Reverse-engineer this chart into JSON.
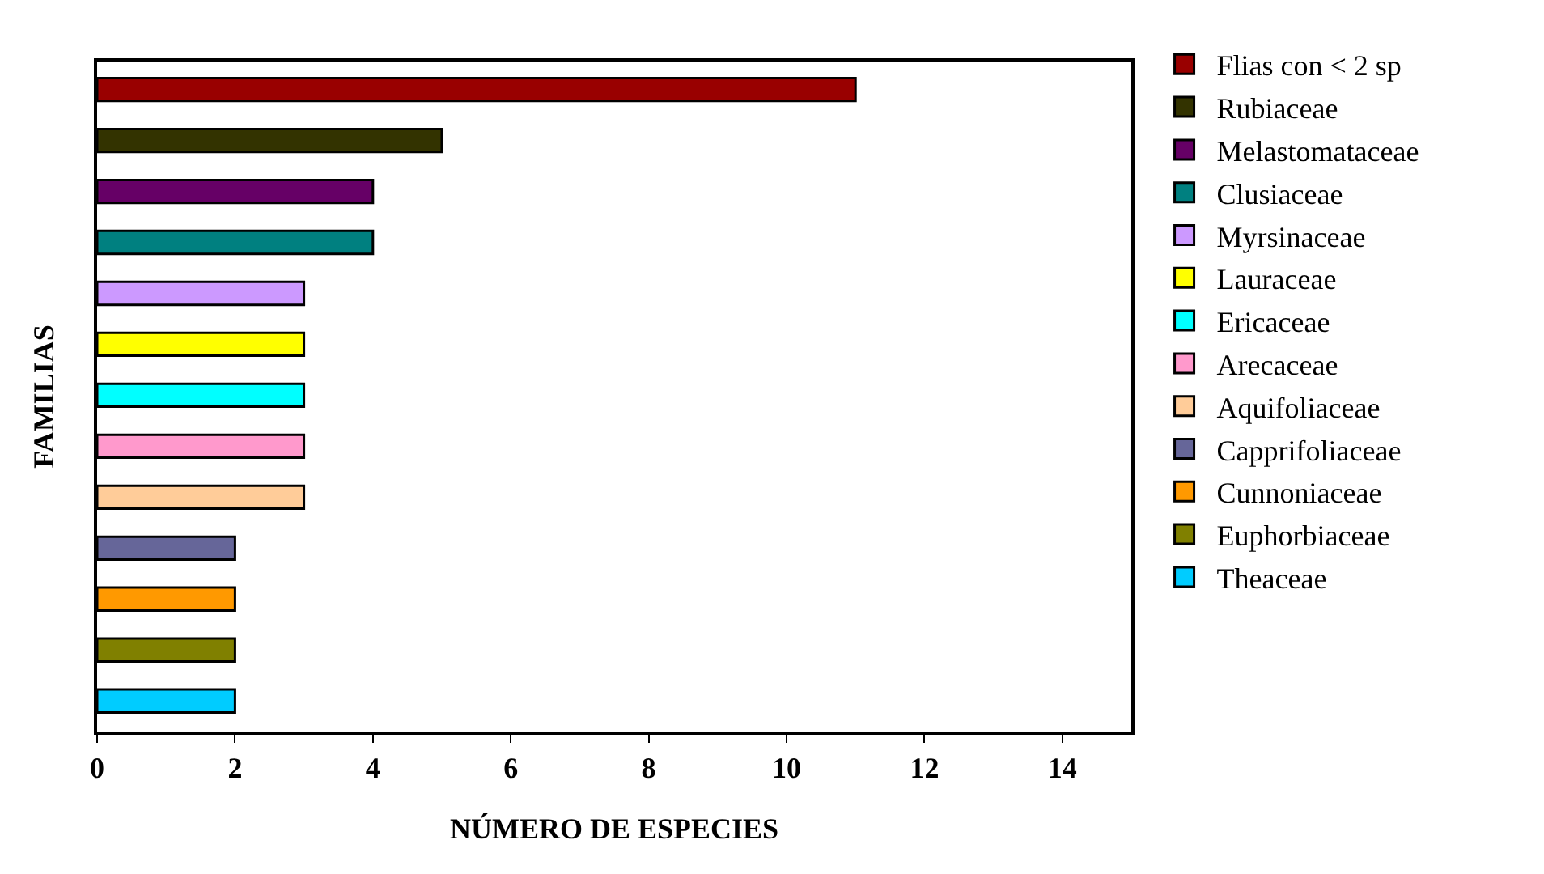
{
  "chart_data": {
    "type": "bar",
    "orientation": "horizontal",
    "xlabel": "NÚMERO DE ESPECIES",
    "ylabel": "FAMILIAS",
    "categories": [
      null,
      null,
      null,
      null,
      null,
      null,
      null,
      null,
      null,
      null,
      null,
      null,
      null
    ],
    "series": [
      {
        "name": "Flias con < 2 sp",
        "color": "#990000",
        "values": [
          11,
          null,
          null,
          null,
          null,
          null,
          null,
          null,
          null,
          null,
          null,
          null,
          null
        ]
      },
      {
        "name": "Rubiaceae",
        "color": "#333300",
        "values": [
          null,
          5,
          null,
          null,
          null,
          null,
          null,
          null,
          null,
          null,
          null,
          null,
          null
        ]
      },
      {
        "name": "Melastomataceae",
        "color": "#660066",
        "values": [
          null,
          null,
          4,
          null,
          null,
          null,
          null,
          null,
          null,
          null,
          null,
          null,
          null
        ]
      },
      {
        "name": "Clusiaceae",
        "color": "#008080",
        "values": [
          null,
          null,
          null,
          4,
          null,
          null,
          null,
          null,
          null,
          null,
          null,
          null,
          null
        ]
      },
      {
        "name": "Myrsinaceae",
        "color": "#cc99ff",
        "values": [
          null,
          null,
          null,
          null,
          3,
          null,
          null,
          null,
          null,
          null,
          null,
          null,
          null
        ]
      },
      {
        "name": "Lauraceae",
        "color": "#ffff00",
        "values": [
          null,
          null,
          null,
          null,
          null,
          3,
          null,
          null,
          null,
          null,
          null,
          null,
          null
        ]
      },
      {
        "name": "Ericaceae",
        "color": "#00ffff",
        "values": [
          null,
          null,
          null,
          null,
          null,
          null,
          3,
          null,
          null,
          null,
          null,
          null,
          null
        ]
      },
      {
        "name": "Arecaceae",
        "color": "#ff99cc",
        "values": [
          null,
          null,
          null,
          null,
          null,
          null,
          null,
          3,
          null,
          null,
          null,
          null,
          null
        ]
      },
      {
        "name": "Aquifoliaceae",
        "color": "#ffcc99",
        "values": [
          null,
          null,
          null,
          null,
          null,
          null,
          null,
          null,
          3,
          null,
          null,
          null,
          null
        ]
      },
      {
        "name": "Capprifoliaceae",
        "color": "#666699",
        "values": [
          null,
          null,
          null,
          null,
          null,
          null,
          null,
          null,
          null,
          2,
          null,
          null,
          null
        ]
      },
      {
        "name": "Cunnoniaceae",
        "color": "#ff9900",
        "values": [
          null,
          null,
          null,
          null,
          null,
          null,
          null,
          null,
          null,
          null,
          2,
          null,
          null
        ]
      },
      {
        "name": "Euphorbiaceae",
        "color": "#808000",
        "values": [
          null,
          null,
          null,
          null,
          null,
          null,
          null,
          null,
          null,
          null,
          null,
          2,
          null
        ]
      },
      {
        "name": "Theaceae",
        "color": "#00ccff",
        "values": [
          null,
          null,
          null,
          null,
          null,
          null,
          null,
          null,
          null,
          null,
          null,
          null,
          2
        ]
      }
    ],
    "xlim": [
      0,
      15
    ],
    "xticks": [
      0,
      2,
      4,
      6,
      8,
      10,
      12,
      14
    ],
    "tick_labels": "x",
    "legend": "right"
  }
}
